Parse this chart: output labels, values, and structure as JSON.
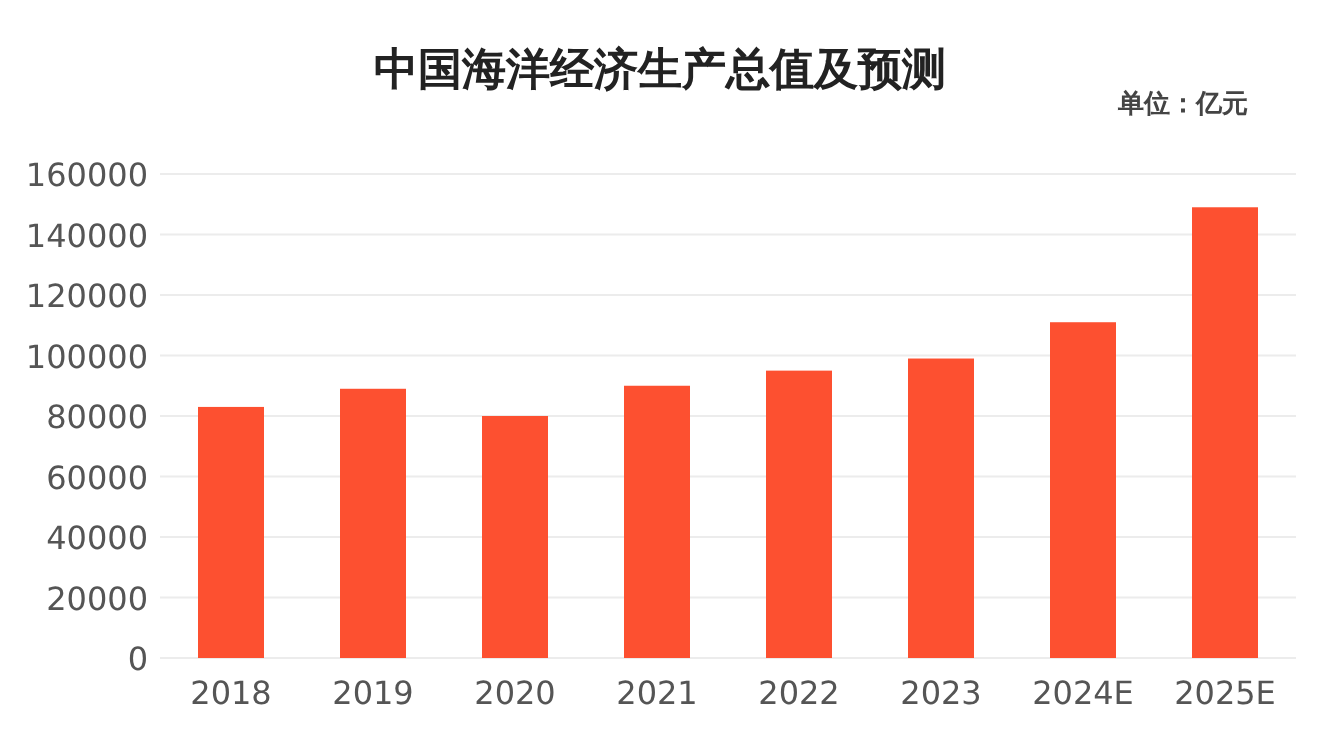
{
  "chart_data": {
    "type": "bar",
    "title": "中国海洋经济生产总值及预测",
    "annotations": [
      "单位：亿元"
    ],
    "categories": [
      "2018",
      "2019",
      "2020",
      "2021",
      "2022",
      "2023",
      "2024E",
      "2025E"
    ],
    "values": [
      83000,
      89000,
      80000,
      90000,
      95000,
      99000,
      111000,
      149000
    ],
    "color": "#fd5030",
    "ylim": [
      0,
      160000
    ],
    "yticks": [
      0,
      20000,
      40000,
      60000,
      80000,
      100000,
      120000,
      140000,
      160000
    ],
    "grid": "y"
  }
}
